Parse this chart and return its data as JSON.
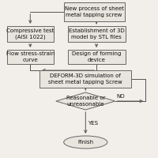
{
  "bg_color": "#f2efea",
  "box_color": "#e8e5df",
  "box_edge": "#666666",
  "arrow_color": "#555555",
  "text_color": "#111111",
  "title": "New process of sheet\nmetal tapping screw",
  "box1_left": "Compressive test\n(AISI 1022)",
  "box1_right": "Establishment of 3D\nmodel by STL files",
  "box2_left": "Flow stress-strain\ncurve",
  "box2_right": "Design of forming\ndevice",
  "box3": "DEFORM-3D simulation of\nsheet metal tapping Screw",
  "diamond": "Reasonable or\nunreasonable",
  "oval": "Finish",
  "yes_label": "YES",
  "no_label": "NO",
  "font_size": 5.0,
  "lw": 0.7
}
